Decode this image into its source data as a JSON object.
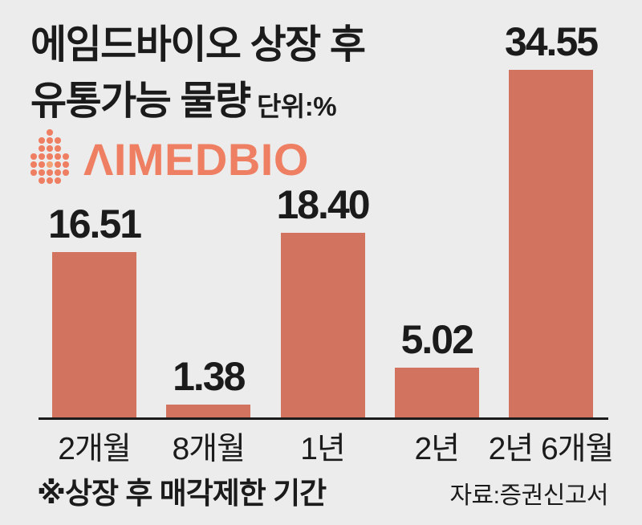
{
  "header": {
    "title_line1": "에임드바이오 상장 후",
    "title_line2": "유통가능 물량",
    "unit_label": "단위:%"
  },
  "logo": {
    "text": "ΛIMEDBIO",
    "icon": "aimedbio-dots-icon",
    "color": "#ee7f62",
    "dot_highlight_color": "#f2a274",
    "icon_pattern": [
      [
        0,
        0,
        1,
        0,
        0
      ],
      [
        0,
        1,
        1,
        1,
        0
      ],
      [
        0,
        1,
        1,
        1,
        0
      ],
      [
        1,
        1,
        1,
        1,
        1
      ],
      [
        1,
        1,
        2,
        1,
        1
      ],
      [
        1,
        1,
        1,
        1,
        1
      ],
      [
        0,
        1,
        1,
        1,
        0
      ]
    ]
  },
  "chart_data": {
    "type": "bar",
    "title": "에임드바이오 상장 후 유통가능 물량",
    "unit": "단위:%",
    "categories": [
      "2개월",
      "8개월",
      "1년",
      "2년",
      "2년 6개월"
    ],
    "values": [
      16.51,
      1.38,
      18.4,
      5.02,
      34.55
    ],
    "value_labels": [
      "16.51",
      "1.38",
      "18.40",
      "5.02",
      "34.55"
    ],
    "xlabel": "상장 후 매각제한 기간(주석)",
    "ylabel": "",
    "ylim": [
      0,
      34.55
    ],
    "grid": false,
    "legend": "none",
    "bar_color": "#d2735f",
    "axis_color": "#1b1b1b"
  },
  "footer": {
    "footnote": "※상장 후 매각제한 기간",
    "source": "자료:증권신고서"
  },
  "colors": {
    "background": "#ececec",
    "text": "#1b1b1b",
    "bar": "#d2735f",
    "logo": "#ee7f62",
    "axis": "#1b1b1b"
  }
}
